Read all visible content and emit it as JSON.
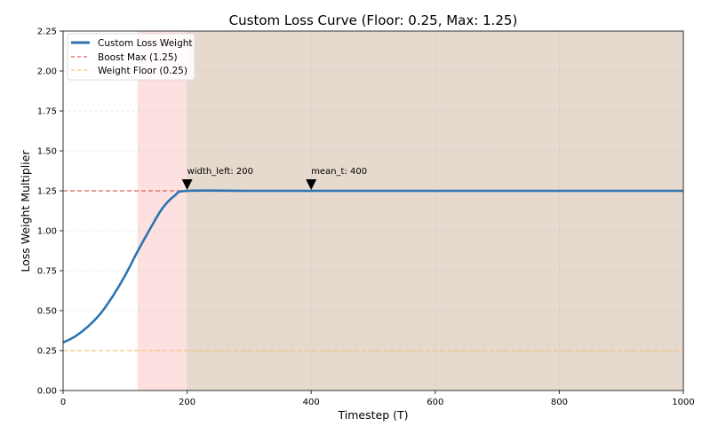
{
  "chart_data": {
    "type": "line",
    "title": "Custom Loss Curve (Floor: 0.25, Max: 1.25)",
    "xlabel": "Timestep (T)",
    "ylabel": "Loss Weight Multiplier",
    "xlim": [
      0,
      1000
    ],
    "ylim": [
      0,
      2.25
    ],
    "xticks": [
      0,
      200,
      400,
      600,
      800,
      1000
    ],
    "xtick_labels": [
      "0",
      "200",
      "400",
      "600",
      "800",
      "1000"
    ],
    "yticks": [
      0,
      0.25,
      0.5,
      0.75,
      1.0,
      1.25,
      1.5,
      1.75,
      2.0,
      2.25
    ],
    "ytick_labels": [
      "0.00",
      "0.25",
      "0.50",
      "0.75",
      "1.00",
      "1.25",
      "1.50",
      "1.75",
      "2.00",
      "2.25"
    ],
    "grid": true,
    "legend_position": "top-left",
    "series": [
      {
        "name": "Custom Loss Weight",
        "color": "#2f74b1",
        "x": [
          0,
          20,
          40,
          60,
          80,
          100,
          120,
          140,
          160,
          180,
          200,
          300,
          400,
          500,
          600,
          700,
          800,
          900,
          1000
        ],
        "values": [
          0.3,
          0.34,
          0.4,
          0.48,
          0.59,
          0.72,
          0.87,
          1.01,
          1.14,
          1.22,
          1.25,
          1.25,
          1.25,
          1.25,
          1.25,
          1.25,
          1.25,
          1.25,
          1.25
        ]
      },
      {
        "name": "Boost Max (1.25)",
        "color": "#d9645f",
        "style": "dashed",
        "y": 1.25
      },
      {
        "name": "Weight Floor (0.25)",
        "color": "#f6c27c",
        "style": "dashed",
        "y": 0.25
      }
    ],
    "shaded_regions": [
      {
        "x_from": 120,
        "x_to": 200,
        "color": "#fde0e0"
      },
      {
        "x_from": 200,
        "x_to": 1000,
        "color": "#e6d9cd"
      }
    ],
    "annotations": [
      {
        "text": "width_left: 200",
        "x": 200,
        "y": 1.25
      },
      {
        "text": "mean_t: 400",
        "x": 400,
        "y": 1.25
      }
    ]
  }
}
